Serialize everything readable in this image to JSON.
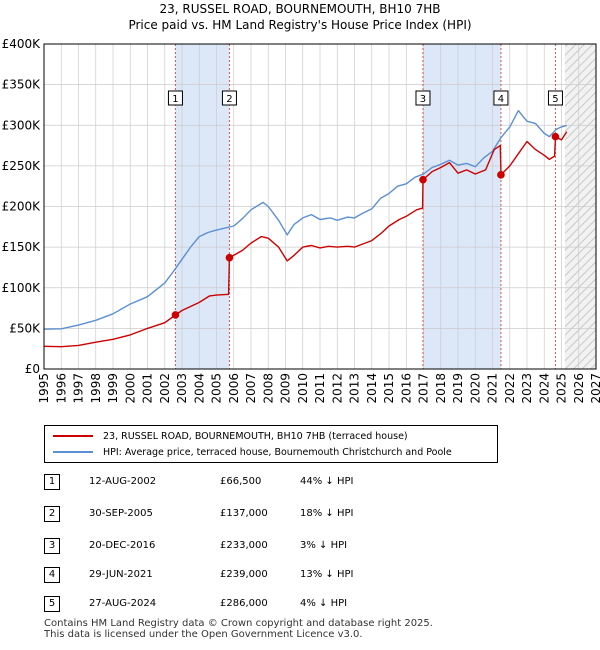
{
  "title": "23, RUSSEL ROAD, BOURNEMOUTH, BH10 7HB",
  "subtitle": "Price paid vs. HM Land Registry's House Price Index (HPI)",
  "colors": {
    "property": "#cc0000",
    "hpi": "#5b8fd4",
    "band": "#dce7f7",
    "marker_line": "#dd5555",
    "grid": "#cccccc"
  },
  "chart_data": {
    "type": "line",
    "xlim": [
      1995,
      2027
    ],
    "ylim": [
      0,
      400000
    ],
    "x_ticks": [
      1995,
      1996,
      1997,
      1998,
      1999,
      2000,
      2001,
      2002,
      2003,
      2004,
      2005,
      2006,
      2007,
      2008,
      2009,
      2010,
      2011,
      2012,
      2013,
      2014,
      2015,
      2016,
      2017,
      2018,
      2019,
      2020,
      2021,
      2022,
      2023,
      2024,
      2025,
      2026,
      2027
    ],
    "y_ticks": [
      {
        "value": 0,
        "label": "£0"
      },
      {
        "value": 50000,
        "label": "£50K"
      },
      {
        "value": 100000,
        "label": "£100K"
      },
      {
        "value": 150000,
        "label": "£150K"
      },
      {
        "value": 200000,
        "label": "£200K"
      },
      {
        "value": 250000,
        "label": "£250K"
      },
      {
        "value": 300000,
        "label": "£300K"
      },
      {
        "value": 350000,
        "label": "£350K"
      },
      {
        "value": 400000,
        "label": "£400K"
      }
    ],
    "forecast_start": 2025.2,
    "shaded_periods": [
      [
        2002.62,
        2005.75
      ],
      [
        2016.97,
        2021.49
      ]
    ],
    "series": [
      {
        "name": "23, RUSSEL ROAD, BOURNEMOUTH, BH10 7HB (terraced house)",
        "color": "#cc0000",
        "points": [
          [
            1995,
            28000
          ],
          [
            1996,
            27500
          ],
          [
            1997,
            29000
          ],
          [
            1998,
            33000
          ],
          [
            1999,
            36500
          ],
          [
            2000,
            42000
          ],
          [
            2001,
            50000
          ],
          [
            2002.0,
            57000
          ],
          [
            2002.62,
            66500
          ],
          [
            2003,
            72000
          ],
          [
            2004,
            82000
          ],
          [
            2004.6,
            90000
          ],
          [
            2005,
            91000
          ],
          [
            2005.7,
            92000
          ],
          [
            2005.75,
            137000
          ],
          [
            2006,
            140000
          ],
          [
            2006.5,
            146000
          ],
          [
            2007,
            155000
          ],
          [
            2007.6,
            163000
          ],
          [
            2008,
            161000
          ],
          [
            2008.6,
            150000
          ],
          [
            2009.1,
            133000
          ],
          [
            2009.5,
            140000
          ],
          [
            2010,
            150000
          ],
          [
            2010.5,
            152000
          ],
          [
            2011,
            149000
          ],
          [
            2011.5,
            151000
          ],
          [
            2012,
            150000
          ],
          [
            2012.6,
            151000
          ],
          [
            2013,
            150000
          ],
          [
            2013.5,
            154000
          ],
          [
            2014,
            158000
          ],
          [
            2014.6,
            168000
          ],
          [
            2015,
            176000
          ],
          [
            2015.6,
            184000
          ],
          [
            2016,
            188000
          ],
          [
            2016.6,
            196000
          ],
          [
            2016.95,
            198000
          ],
          [
            2016.97,
            233000
          ],
          [
            2017.5,
            243000
          ],
          [
            2018,
            248000
          ],
          [
            2018.5,
            254000
          ],
          [
            2019,
            241000
          ],
          [
            2019.5,
            245000
          ],
          [
            2020,
            240000
          ],
          [
            2020.6,
            245000
          ],
          [
            2021.1,
            270000
          ],
          [
            2021.45,
            275000
          ],
          [
            2021.49,
            239000
          ],
          [
            2022,
            250000
          ],
          [
            2022.5,
            265000
          ],
          [
            2023,
            280000
          ],
          [
            2023.5,
            270000
          ],
          [
            2024,
            263000
          ],
          [
            2024.3,
            258000
          ],
          [
            2024.6,
            262000
          ],
          [
            2024.65,
            286000
          ],
          [
            2025,
            282000
          ],
          [
            2025.3,
            292000
          ]
        ]
      },
      {
        "name": "HPI: Average price, terraced house, Bournemouth Christchurch and Poole",
        "color": "#5b8fd4",
        "points": [
          [
            1995,
            49000
          ],
          [
            1996,
            49500
          ],
          [
            1997,
            54000
          ],
          [
            1998,
            60000
          ],
          [
            1999,
            68000
          ],
          [
            2000,
            80000
          ],
          [
            2001,
            89000
          ],
          [
            2002,
            106000
          ],
          [
            2002.5,
            120000
          ],
          [
            2003,
            135000
          ],
          [
            2003.5,
            150000
          ],
          [
            2004,
            163000
          ],
          [
            2004.5,
            168000
          ],
          [
            2005,
            171000
          ],
          [
            2006,
            176000
          ],
          [
            2006.5,
            185000
          ],
          [
            2007,
            196000
          ],
          [
            2007.7,
            205000
          ],
          [
            2008,
            200000
          ],
          [
            2008.6,
            183000
          ],
          [
            2009.1,
            165000
          ],
          [
            2009.5,
            178000
          ],
          [
            2010,
            186000
          ],
          [
            2010.5,
            190000
          ],
          [
            2011,
            184000
          ],
          [
            2011.6,
            186000
          ],
          [
            2012,
            183000
          ],
          [
            2012.6,
            187000
          ],
          [
            2013,
            186000
          ],
          [
            2013.5,
            192000
          ],
          [
            2014,
            197000
          ],
          [
            2014.5,
            210000
          ],
          [
            2015,
            216000
          ],
          [
            2015.5,
            225000
          ],
          [
            2016,
            228000
          ],
          [
            2016.5,
            236000
          ],
          [
            2017,
            240000
          ],
          [
            2017.5,
            248000
          ],
          [
            2018,
            252000
          ],
          [
            2018.5,
            257000
          ],
          [
            2019,
            251000
          ],
          [
            2019.5,
            253000
          ],
          [
            2020,
            249000
          ],
          [
            2020.5,
            260000
          ],
          [
            2021,
            268000
          ],
          [
            2021.5,
            285000
          ],
          [
            2022,
            298000
          ],
          [
            2022.5,
            318000
          ],
          [
            2022.8,
            310000
          ],
          [
            2023,
            305000
          ],
          [
            2023.5,
            302000
          ],
          [
            2024,
            290000
          ],
          [
            2024.3,
            286000
          ],
          [
            2024.7,
            295000
          ],
          [
            2025,
            298000
          ],
          [
            2025.3,
            300000
          ]
        ]
      }
    ],
    "sales": [
      {
        "id": "1",
        "x": 2002.62,
        "y": 66500
      },
      {
        "id": "2",
        "x": 2005.75,
        "y": 137000
      },
      {
        "id": "3",
        "x": 2016.97,
        "y": 233000
      },
      {
        "id": "4",
        "x": 2021.49,
        "y": 239000
      },
      {
        "id": "5",
        "x": 2024.65,
        "y": 286000
      }
    ]
  },
  "legend": {
    "property_label": "23, RUSSEL ROAD, BOURNEMOUTH, BH10 7HB (terraced house)",
    "hpi_label": "HPI: Average price, terraced house, Bournemouth Christchurch and Poole"
  },
  "transactions": [
    {
      "num": "1",
      "date": "12-AUG-2002",
      "price": "£66,500",
      "hpi": "44% ↓ HPI"
    },
    {
      "num": "2",
      "date": "30-SEP-2005",
      "price": "£137,000",
      "hpi": "18% ↓ HPI"
    },
    {
      "num": "3",
      "date": "20-DEC-2016",
      "price": "£233,000",
      "hpi": "3% ↓ HPI"
    },
    {
      "num": "4",
      "date": "29-JUN-2021",
      "price": "£239,000",
      "hpi": "13% ↓ HPI"
    },
    {
      "num": "5",
      "date": "27-AUG-2024",
      "price": "£286,000",
      "hpi": "4% ↓ HPI"
    }
  ],
  "footer": {
    "line1": "Contains HM Land Registry data © Crown copyright and database right 2025.",
    "line2": "This data is licensed under the Open Government Licence v3.0."
  }
}
